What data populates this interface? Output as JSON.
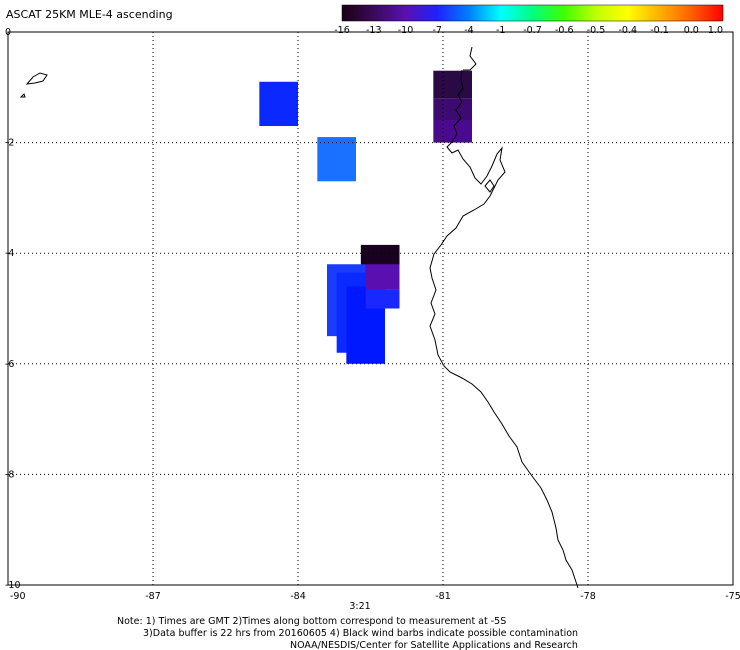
{
  "header": {
    "title": "ASCAT 25KM MLE-4 ascending"
  },
  "colorbar": {
    "labels": [
      "-16",
      "-13",
      "-10",
      "-7",
      "-4",
      "-1",
      "-0.7",
      "-0.6",
      "-0.5",
      "-0.4",
      "-0.1",
      "0.0",
      "1.0"
    ],
    "gradient_colors": [
      "#1a0010",
      "#3a0a5a",
      "#5a10b0",
      "#2020ff",
      "#0080ff",
      "#00ffff",
      "#00ff80",
      "#40ff00",
      "#c0ff00",
      "#ffff00",
      "#ffb000",
      "#ff6000",
      "#ff0000"
    ]
  },
  "map": {
    "lon_range": [
      -90,
      -75
    ],
    "lat_range": [
      -10,
      0
    ],
    "x_ticks": [
      "-90",
      "-87",
      "-84",
      "-81",
      "-78",
      "-75"
    ],
    "y_ticks": [
      "0",
      "-2",
      "-4",
      "-6",
      "-8",
      "-10"
    ],
    "time_label": "3:21",
    "time_label_color": "#cc2200",
    "cells": [
      {
        "lon": [
          -84.8,
          -84.0
        ],
        "lat": [
          -0.9,
          -1.7
        ],
        "color": "#0a28ff"
      },
      {
        "lon": [
          -83.6,
          -82.8
        ],
        "lat": [
          -1.9,
          -2.7
        ],
        "color": "#1a70ff"
      },
      {
        "lon": [
          -81.2,
          -80.4
        ],
        "lat": [
          -0.7,
          -1.2
        ],
        "color": "#2a0a45"
      },
      {
        "lon": [
          -81.2,
          -80.4
        ],
        "lat": [
          -1.2,
          -1.6
        ],
        "color": "#3d0a70"
      },
      {
        "lon": [
          -81.2,
          -80.4
        ],
        "lat": [
          -1.6,
          -2.0
        ],
        "color": "#4a0a90"
      },
      {
        "lon": [
          -82.7,
          -81.9
        ],
        "lat": [
          -3.85,
          -4.65
        ],
        "color": "#1a0020"
      },
      {
        "lon": [
          -83.4,
          -82.6
        ],
        "lat": [
          -4.2,
          -5.5
        ],
        "color": "#1a3cff"
      },
      {
        "lon": [
          -83.2,
          -82.4
        ],
        "lat": [
          -4.35,
          -5.8
        ],
        "color": "#0a2aff"
      },
      {
        "lon": [
          -83.0,
          -82.2
        ],
        "lat": [
          -4.6,
          -6.0
        ],
        "color": "#0018ff"
      },
      {
        "lon": [
          -82.6,
          -81.9
        ],
        "lat": [
          -4.2,
          -4.65
        ],
        "color": "#5a10b0"
      },
      {
        "lon": [
          -82.6,
          -81.9
        ],
        "lat": [
          -4.65,
          -5.0
        ],
        "color": "#1a28ff"
      }
    ]
  },
  "footer": {
    "note_line1": "Note: 1) Times are GMT 2)Times along bottom correspond to measurement at -5S",
    "note_line2": "3)Data buffer is 22 hrs from 20160605 4) Black wind barbs indicate possible contamination",
    "credit": "NOAA/NESDIS/Center for Satellite Applications and Research"
  }
}
